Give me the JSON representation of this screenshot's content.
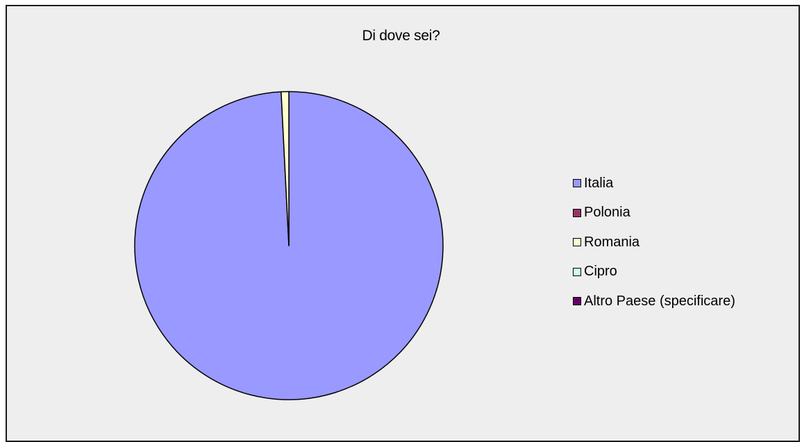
{
  "chart_data": {
    "type": "pie",
    "title": "Di dove sei?",
    "categories": [
      "Italia",
      "Polonia",
      "Romania",
      "Cipro",
      "Altro Paese (specificare)"
    ],
    "values": [
      99.2,
      0,
      0.8,
      0,
      0
    ],
    "colors": [
      "#9999ff",
      "#993366",
      "#ffffcc",
      "#ccffff",
      "#660066"
    ],
    "legend_position": "right",
    "start_angle_deg": 0,
    "direction": "clockwise"
  }
}
